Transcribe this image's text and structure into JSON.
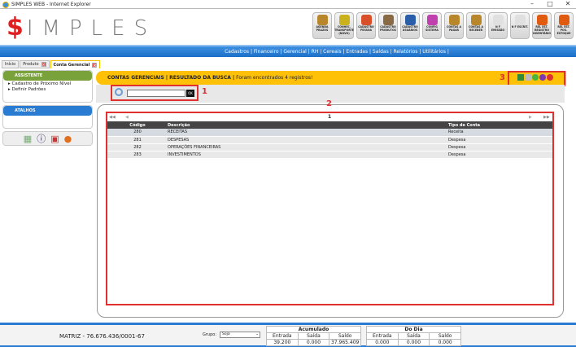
{
  "window": {
    "title": "SIMPLES WEB - Internet Explorer"
  },
  "logo": {
    "dollar": "$",
    "text": "IMPLES"
  },
  "toolbar": [
    {
      "label": "AGENDA PRAZOS",
      "color": "#b8862b"
    },
    {
      "label": "CONHEC. TRANSPORTE (NOVO)",
      "color": "#c9b21b"
    },
    {
      "label": "CADASTRO PESSOA",
      "color": "#d94f2a"
    },
    {
      "label": "CADASTRO PRODUTOS",
      "color": "#8a6a44"
    },
    {
      "label": "CADASTRO USUÁRIOS",
      "color": "#2b5ea8"
    },
    {
      "label": "CONFIG SISTEMA",
      "color": "#c040b0"
    },
    {
      "label": "CONTAS A PAGAR",
      "color": "#b8862b"
    },
    {
      "label": "CONTAS A RECEBER",
      "color": "#b8862b"
    },
    {
      "label": "N F EMISSÃO",
      "color": "#e0e0e0"
    },
    {
      "label": "N F ESCRIT.",
      "color": "#e0e0e0"
    },
    {
      "label": "REL EST. REGISTRO INVENTÁRIO",
      "color": "#e05a10"
    },
    {
      "label": "REL EST. POS. ESTOQUE",
      "color": "#e05a10"
    }
  ],
  "nav": {
    "text": "Cadastros | Financeiro | Gerencial | RH | Cereais | Entradas | Saídas | Relatórios | Utilitários |"
  },
  "tabs": [
    {
      "label": "Início"
    },
    {
      "label": "Produto"
    },
    {
      "label": "Conta Gerencial"
    }
  ],
  "sidebar": {
    "assistente": {
      "title": "ASSISTENTE",
      "items": [
        "Cadastro de Próximo Nível",
        "Definir Padrões"
      ]
    },
    "atalhos": {
      "title": "ATALHOS"
    },
    "shortcuts": [
      "calculator-icon",
      "help-icon",
      "calendar-icon",
      "user-icon"
    ]
  },
  "header": {
    "section": "CONTAS GERENCIAIS | RESULTADO DA BUSCA |",
    "message": " Foram encontrados 4 registros!"
  },
  "search": {
    "value": "",
    "ok": "OK"
  },
  "annotations": {
    "a1": "1",
    "a2": "2",
    "a3": "3"
  },
  "pager": {
    "page": "1"
  },
  "table": {
    "columns": [
      "Código",
      "Descrição",
      "Tipo de Conta"
    ],
    "rows": [
      [
        "280",
        "RECEITAS",
        "Receita"
      ],
      [
        "281",
        "DESPESAS",
        "Despesa"
      ],
      [
        "282",
        "OPERAÇÕES FINANCEIRAS",
        "Despesa"
      ],
      [
        "283",
        "INVESTIMENTOS",
        "Despesa"
      ]
    ]
  },
  "footer": {
    "company": "MATRIZ - 76.676.436/0001-67",
    "grupo_label": "Grupo:",
    "grupo_value": "Soja",
    "acumulado": {
      "title": "Acumulado",
      "entrada_label": "Entrada",
      "saida_label": "Saída",
      "saldo_label": "Saldo",
      "entrada": "39.200",
      "saida": "0.000",
      "saldo": "37.965.409"
    },
    "dodia": {
      "title": "Do Dia",
      "entrada_label": "Entrada",
      "saida_label": "Saída",
      "saldo_label": "Saldo",
      "entrada": "0.000",
      "saida": "0.000",
      "saldo": "0.000"
    }
  }
}
